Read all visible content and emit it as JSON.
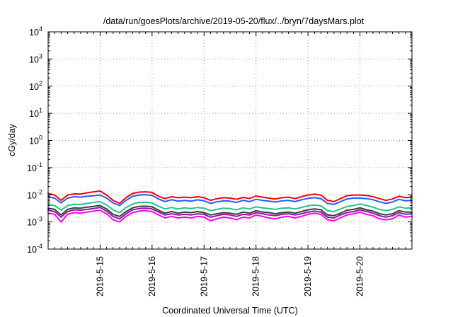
{
  "chart_data": {
    "type": "line",
    "title": "/data/run/goesPlots/archive/2019-05-20/flux/../bryn/7daysMars.plot",
    "xlabel": "Coordinated Universal Time (UTC)",
    "ylabel": "cGy/day",
    "y_scale": "log",
    "ylim": [
      0.0001,
      10000
    ],
    "y_ticks": [
      {
        "value": 0.0001,
        "base": "10",
        "exp": "-4"
      },
      {
        "value": 0.001,
        "base": "10",
        "exp": "-3"
      },
      {
        "value": 0.01,
        "base": "10",
        "exp": "-2"
      },
      {
        "value": 0.1,
        "base": "10",
        "exp": "-1"
      },
      {
        "value": 1,
        "base": "10",
        "exp": "0"
      },
      {
        "value": 10,
        "base": "10",
        "exp": "1"
      },
      {
        "value": 100,
        "base": "10",
        "exp": "2"
      },
      {
        "value": 1000,
        "base": "10",
        "exp": "3"
      },
      {
        "value": 10000,
        "base": "10",
        "exp": "4"
      }
    ],
    "xlim": [
      "2019-05-14T00:00",
      "2019-05-21T00:00"
    ],
    "x_ticks": [
      "2019-5-15",
      "2019-5-16",
      "2019-5-17",
      "2019-5-18",
      "2019-5-19",
      "2019-5-20"
    ],
    "x_tick_values": [
      "2019-05-15",
      "2019-05-16",
      "2019-05-17",
      "2019-05-18",
      "2019-05-19",
      "2019-05-20"
    ],
    "grid": true,
    "x_sample_hours": [
      0,
      3,
      6,
      9,
      12,
      15,
      18,
      21,
      24,
      27,
      30,
      33,
      36,
      39,
      42,
      45,
      48,
      51,
      54,
      57,
      60,
      63,
      66,
      69,
      72,
      75,
      78,
      81,
      84,
      87,
      90,
      93,
      96,
      99,
      102,
      105,
      108,
      111,
      114,
      117,
      120,
      123,
      126,
      129,
      132,
      135,
      138,
      141,
      144,
      147,
      150,
      153,
      156,
      159,
      162,
      165,
      168
    ],
    "series": [
      {
        "color": "#ff0000",
        "values": [
          0.0112,
          0.0098,
          0.0062,
          0.0098,
          0.0108,
          0.0106,
          0.0118,
          0.0128,
          0.0138,
          0.0098,
          0.0062,
          0.0048,
          0.0078,
          0.0112,
          0.0125,
          0.0128,
          0.0122,
          0.0088,
          0.0072,
          0.0085,
          0.0078,
          0.0082,
          0.0078,
          0.0085,
          0.0078,
          0.0062,
          0.0072,
          0.0078,
          0.0075,
          0.0068,
          0.008,
          0.0073,
          0.009,
          0.0082,
          0.0075,
          0.007,
          0.0078,
          0.0082,
          0.0072,
          0.0085,
          0.0098,
          0.0105,
          0.0098,
          0.0062,
          0.0056,
          0.0072,
          0.0092,
          0.0098,
          0.0098,
          0.0094,
          0.0086,
          0.0072,
          0.0062,
          0.007,
          0.0088,
          0.0078,
          0.0082
        ]
      },
      {
        "color": "#1f5fff",
        "values": [
          0.0085,
          0.0075,
          0.005,
          0.0075,
          0.0085,
          0.0082,
          0.0088,
          0.0092,
          0.0098,
          0.0075,
          0.005,
          0.004,
          0.0062,
          0.0088,
          0.0098,
          0.01,
          0.0095,
          0.007,
          0.0056,
          0.0066,
          0.0058,
          0.0062,
          0.0058,
          0.0065,
          0.006,
          0.0048,
          0.0055,
          0.006,
          0.0058,
          0.0052,
          0.0062,
          0.0056,
          0.0068,
          0.0062,
          0.0058,
          0.0054,
          0.006,
          0.0062,
          0.0056,
          0.0065,
          0.0074,
          0.0078,
          0.0072,
          0.0048,
          0.0044,
          0.0056,
          0.007,
          0.0075,
          0.0075,
          0.0072,
          0.0066,
          0.0055,
          0.0048,
          0.0054,
          0.0068,
          0.006,
          0.0062
        ]
      },
      {
        "color": "#22c48a",
        "values": [
          0.0044,
          0.004,
          0.0027,
          0.004,
          0.0045,
          0.0044,
          0.0048,
          0.0052,
          0.0056,
          0.0042,
          0.0028,
          0.0022,
          0.0034,
          0.0046,
          0.0052,
          0.0053,
          0.005,
          0.0038,
          0.003,
          0.0034,
          0.003,
          0.0033,
          0.0031,
          0.0034,
          0.0032,
          0.0026,
          0.0029,
          0.0032,
          0.0031,
          0.0028,
          0.0033,
          0.003,
          0.0036,
          0.0033,
          0.0031,
          0.0029,
          0.0032,
          0.0033,
          0.003,
          0.0034,
          0.0039,
          0.0042,
          0.0039,
          0.0026,
          0.0024,
          0.003,
          0.0037,
          0.004,
          0.0046,
          0.004,
          0.0035,
          0.0029,
          0.0026,
          0.0029,
          0.0036,
          0.0032,
          0.0033
        ]
      },
      {
        "color": "#3a3a3a",
        "values": [
          0.0032,
          0.0029,
          0.0018,
          0.0029,
          0.0033,
          0.0032,
          0.0035,
          0.0037,
          0.004,
          0.003,
          0.0019,
          0.0016,
          0.0024,
          0.0033,
          0.0037,
          0.0038,
          0.0036,
          0.0027,
          0.0021,
          0.0024,
          0.0021,
          0.0023,
          0.0022,
          0.0024,
          0.0022,
          0.0018,
          0.002,
          0.0022,
          0.0021,
          0.0019,
          0.0023,
          0.0021,
          0.0026,
          0.0023,
          0.0022,
          0.002,
          0.0022,
          0.0023,
          0.0021,
          0.0024,
          0.0028,
          0.003,
          0.0028,
          0.0018,
          0.0017,
          0.0021,
          0.0027,
          0.0029,
          0.0033,
          0.0028,
          0.0025,
          0.002,
          0.0018,
          0.002,
          0.0026,
          0.0023,
          0.0023
        ]
      },
      {
        "color": "#8a1a9a",
        "values": [
          0.0027,
          0.0024,
          0.0015,
          0.0024,
          0.0028,
          0.0027,
          0.0029,
          0.0031,
          0.0034,
          0.0025,
          0.0016,
          0.0013,
          0.002,
          0.0028,
          0.0031,
          0.0032,
          0.003,
          0.0023,
          0.0018,
          0.002,
          0.0018,
          0.0019,
          0.0018,
          0.002,
          0.0019,
          0.0015,
          0.0017,
          0.0019,
          0.0018,
          0.0016,
          0.0019,
          0.0018,
          0.0022,
          0.002,
          0.0018,
          0.0017,
          0.0019,
          0.002,
          0.0018,
          0.002,
          0.0023,
          0.0025,
          0.0023,
          0.0015,
          0.0014,
          0.0018,
          0.0022,
          0.0024,
          0.0028,
          0.0024,
          0.0021,
          0.0017,
          0.0015,
          0.0017,
          0.0022,
          0.0019,
          0.002
        ]
      },
      {
        "color": "#ff00ff",
        "values": [
          0.0021,
          0.0019,
          0.001,
          0.0019,
          0.0022,
          0.0021,
          0.0023,
          0.0025,
          0.0027,
          0.002,
          0.0012,
          0.001,
          0.0016,
          0.0022,
          0.0025,
          0.0026,
          0.0024,
          0.0018,
          0.0014,
          0.0016,
          0.0014,
          0.0015,
          0.0014,
          0.0016,
          0.0015,
          0.0011,
          0.0013,
          0.0015,
          0.0014,
          0.0012,
          0.0015,
          0.0014,
          0.0018,
          0.0016,
          0.0014,
          0.0013,
          0.0015,
          0.0016,
          0.0014,
          0.0016,
          0.0019,
          0.0021,
          0.0019,
          0.0012,
          0.0011,
          0.0014,
          0.0018,
          0.002,
          0.0023,
          0.0019,
          0.0017,
          0.0013,
          0.0012,
          0.0013,
          0.0018,
          0.0015,
          0.0016
        ]
      }
    ]
  }
}
